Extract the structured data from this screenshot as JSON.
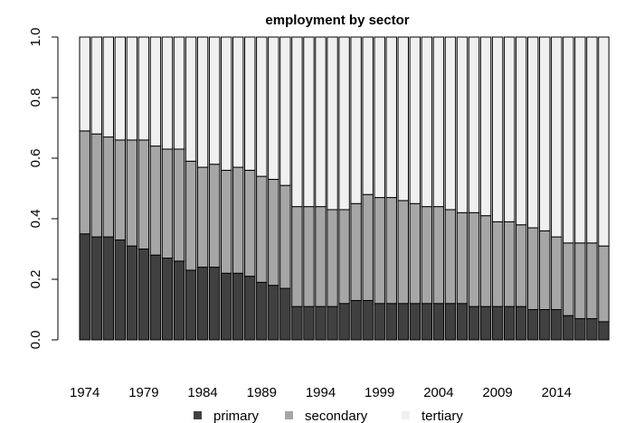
{
  "chart_data": {
    "type": "bar",
    "stacked": true,
    "title": "employment by sector",
    "xlabel": "",
    "ylabel": "",
    "ylim": [
      0,
      1
    ],
    "yticks": [
      "0.0",
      "0.2",
      "0.4",
      "0.6",
      "0.8",
      "1.0"
    ],
    "ytick_values": [
      0,
      0.2,
      0.4,
      0.6,
      0.8,
      1.0
    ],
    "xtick_labels": [
      "1974",
      "1979",
      "1984",
      "1989",
      "1994",
      "1999",
      "2004",
      "2009",
      "2014"
    ],
    "xtick_years": [
      1974,
      1979,
      1984,
      1989,
      1994,
      1999,
      2004,
      2009,
      2014
    ],
    "categories": [
      1974,
      1975,
      1976,
      1977,
      1978,
      1979,
      1980,
      1981,
      1982,
      1983,
      1984,
      1985,
      1986,
      1987,
      1988,
      1989,
      1990,
      1991,
      1992,
      1993,
      1994,
      1995,
      1996,
      1997,
      1998,
      1999,
      2000,
      2001,
      2002,
      2003,
      2004,
      2005,
      2006,
      2007,
      2008,
      2009,
      2010,
      2011,
      2012,
      2013,
      2014,
      2015,
      2016,
      2017,
      2018
    ],
    "series": [
      {
        "name": "primary",
        "color": "#404040",
        "values": [
          0.35,
          0.34,
          0.34,
          0.33,
          0.31,
          0.3,
          0.28,
          0.27,
          0.26,
          0.23,
          0.24,
          0.24,
          0.22,
          0.22,
          0.21,
          0.19,
          0.18,
          0.17,
          0.11,
          0.11,
          0.11,
          0.11,
          0.12,
          0.13,
          0.13,
          0.12,
          0.12,
          0.12,
          0.12,
          0.12,
          0.12,
          0.12,
          0.12,
          0.11,
          0.11,
          0.11,
          0.11,
          0.11,
          0.1,
          0.1,
          0.1,
          0.08,
          0.07,
          0.07,
          0.06
        ]
      },
      {
        "name": "secondary",
        "color": "#a6a6a6",
        "values": [
          0.34,
          0.34,
          0.33,
          0.33,
          0.35,
          0.36,
          0.36,
          0.36,
          0.37,
          0.36,
          0.33,
          0.34,
          0.34,
          0.35,
          0.35,
          0.35,
          0.35,
          0.34,
          0.33,
          0.33,
          0.33,
          0.32,
          0.31,
          0.32,
          0.35,
          0.35,
          0.35,
          0.34,
          0.33,
          0.32,
          0.32,
          0.31,
          0.3,
          0.31,
          0.3,
          0.28,
          0.28,
          0.27,
          0.27,
          0.26,
          0.24,
          0.24,
          0.25,
          0.25,
          0.25
        ]
      },
      {
        "name": "tertiary",
        "color": "#f0f0f0",
        "values": [
          0.31,
          0.32,
          0.33,
          0.34,
          0.34,
          0.34,
          0.36,
          0.37,
          0.37,
          0.41,
          0.43,
          0.42,
          0.44,
          0.43,
          0.44,
          0.46,
          0.47,
          0.49,
          0.56,
          0.56,
          0.56,
          0.57,
          0.57,
          0.55,
          0.52,
          0.53,
          0.53,
          0.54,
          0.55,
          0.56,
          0.56,
          0.57,
          0.58,
          0.58,
          0.59,
          0.61,
          0.61,
          0.62,
          0.63,
          0.64,
          0.66,
          0.68,
          0.68,
          0.68,
          0.69
        ]
      }
    ],
    "legend": {
      "position": "bottom",
      "entries": [
        "primary",
        "secondary",
        "tertiary"
      ]
    },
    "grid": false
  }
}
